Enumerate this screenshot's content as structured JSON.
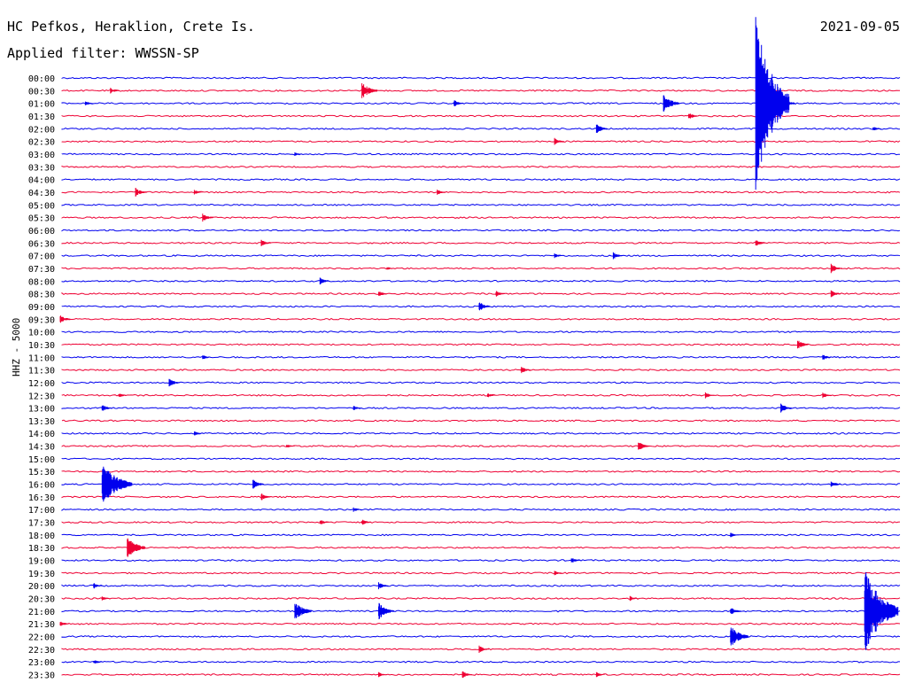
{
  "header": {
    "station": "HC Pefkos, Heraklion, Crete Is.",
    "filter": "Applied filter: WWSSN-SP",
    "date": "2021-09-05"
  },
  "channel_label": "HHZ - 5000",
  "colors": {
    "odd_trace": "#0000ee",
    "even_trace": "#ee0033",
    "background": "#ffffff"
  },
  "chart_data": {
    "type": "line",
    "title": "",
    "xlabel": "",
    "ylabel": "HHZ - 5000",
    "rows": [
      "00:00",
      "00:30",
      "01:00",
      "01:30",
      "02:00",
      "02:30",
      "03:00",
      "03:30",
      "04:00",
      "04:30",
      "05:00",
      "05:30",
      "06:00",
      "06:30",
      "07:00",
      "07:30",
      "08:00",
      "08:30",
      "09:00",
      "09:30",
      "10:00",
      "10:30",
      "11:00",
      "11:30",
      "12:00",
      "12:30",
      "13:00",
      "13:30",
      "14:00",
      "14:30",
      "15:00",
      "15:30",
      "16:00",
      "16:30",
      "17:00",
      "17:30",
      "18:00",
      "18:30",
      "19:00",
      "19:30",
      "20:00",
      "20:30",
      "21:00",
      "21:30",
      "22:00",
      "22:30",
      "23:00",
      "23:30"
    ],
    "trace_colors": [
      "blue",
      "red"
    ],
    "events": [
      {
        "row": 1,
        "x": 0.06,
        "amp": 0.5
      },
      {
        "row": 1,
        "x": 0.36,
        "amp": 1.4
      },
      {
        "row": 2,
        "x": 0.03,
        "amp": 0.4
      },
      {
        "row": 2,
        "x": 0.47,
        "amp": 0.6
      },
      {
        "row": 2,
        "x": 0.72,
        "amp": 1.5
      },
      {
        "row": 2,
        "x": 0.83,
        "amp": 14
      },
      {
        "row": 2,
        "x": 0.86,
        "amp": 1.2
      },
      {
        "row": 3,
        "x": 0.75,
        "amp": 0.6
      },
      {
        "row": 4,
        "x": 0.64,
        "amp": 0.8
      },
      {
        "row": 4,
        "x": 0.97,
        "amp": 0.4
      },
      {
        "row": 5,
        "x": 0.59,
        "amp": 0.6
      },
      {
        "row": 6,
        "x": 0.28,
        "amp": 0.3
      },
      {
        "row": 9,
        "x": 0.09,
        "amp": 0.8
      },
      {
        "row": 9,
        "x": 0.16,
        "amp": 0.4
      },
      {
        "row": 9,
        "x": 0.45,
        "amp": 0.5
      },
      {
        "row": 11,
        "x": 0.17,
        "amp": 0.7
      },
      {
        "row": 13,
        "x": 0.24,
        "amp": 0.6
      },
      {
        "row": 13,
        "x": 0.83,
        "amp": 0.6
      },
      {
        "row": 14,
        "x": 0.59,
        "amp": 0.4
      },
      {
        "row": 14,
        "x": 0.66,
        "amp": 0.6
      },
      {
        "row": 15,
        "x": 0.39,
        "amp": 0.3
      },
      {
        "row": 15,
        "x": 0.92,
        "amp": 0.8
      },
      {
        "row": 16,
        "x": 0.31,
        "amp": 0.6
      },
      {
        "row": 17,
        "x": 0.38,
        "amp": 0.5
      },
      {
        "row": 17,
        "x": 0.52,
        "amp": 0.5
      },
      {
        "row": 17,
        "x": 0.92,
        "amp": 0.6
      },
      {
        "row": 18,
        "x": 0.5,
        "amp": 0.8
      },
      {
        "row": 19,
        "x": 0.0,
        "amp": 0.7
      },
      {
        "row": 21,
        "x": 0.88,
        "amp": 0.8
      },
      {
        "row": 22,
        "x": 0.17,
        "amp": 0.4
      },
      {
        "row": 22,
        "x": 0.91,
        "amp": 0.5
      },
      {
        "row": 23,
        "x": 0.55,
        "amp": 0.6
      },
      {
        "row": 24,
        "x": 0.13,
        "amp": 0.7
      },
      {
        "row": 25,
        "x": 0.07,
        "amp": 0.4
      },
      {
        "row": 25,
        "x": 0.51,
        "amp": 0.4
      },
      {
        "row": 25,
        "x": 0.77,
        "amp": 0.5
      },
      {
        "row": 25,
        "x": 0.91,
        "amp": 0.5
      },
      {
        "row": 26,
        "x": 0.05,
        "amp": 0.6
      },
      {
        "row": 26,
        "x": 0.35,
        "amp": 0.4
      },
      {
        "row": 26,
        "x": 0.86,
        "amp": 0.8
      },
      {
        "row": 28,
        "x": 0.16,
        "amp": 0.4
      },
      {
        "row": 29,
        "x": 0.27,
        "amp": 0.4
      },
      {
        "row": 29,
        "x": 0.69,
        "amp": 0.8
      },
      {
        "row": 32,
        "x": 0.05,
        "amp": 3.5
      },
      {
        "row": 32,
        "x": 0.23,
        "amp": 0.8
      },
      {
        "row": 32,
        "x": 0.92,
        "amp": 0.6
      },
      {
        "row": 33,
        "x": 0.24,
        "amp": 0.6
      },
      {
        "row": 34,
        "x": 0.35,
        "amp": 0.4
      },
      {
        "row": 35,
        "x": 0.31,
        "amp": 0.5
      },
      {
        "row": 35,
        "x": 0.36,
        "amp": 0.5
      },
      {
        "row": 36,
        "x": 0.8,
        "amp": 0.4
      },
      {
        "row": 37,
        "x": 0.08,
        "amp": 1.8
      },
      {
        "row": 38,
        "x": 0.61,
        "amp": 0.5
      },
      {
        "row": 39,
        "x": 0.59,
        "amp": 0.4
      },
      {
        "row": 40,
        "x": 0.04,
        "amp": 0.5
      },
      {
        "row": 40,
        "x": 0.38,
        "amp": 0.6
      },
      {
        "row": 41,
        "x": 0.05,
        "amp": 0.4
      },
      {
        "row": 41,
        "x": 0.68,
        "amp": 0.4
      },
      {
        "row": 42,
        "x": 0.28,
        "amp": 1.6
      },
      {
        "row": 42,
        "x": 0.38,
        "amp": 1.4
      },
      {
        "row": 42,
        "x": 0.8,
        "amp": 0.7
      },
      {
        "row": 42,
        "x": 0.96,
        "amp": 7
      },
      {
        "row": 43,
        "x": 0.0,
        "amp": 0.5
      },
      {
        "row": 44,
        "x": 0.8,
        "amp": 1.8
      },
      {
        "row": 45,
        "x": 0.5,
        "amp": 0.6
      },
      {
        "row": 46,
        "x": 0.04,
        "amp": 0.4
      },
      {
        "row": 47,
        "x": 0.38,
        "amp": 0.4
      },
      {
        "row": 47,
        "x": 0.48,
        "amp": 0.6
      },
      {
        "row": 47,
        "x": 0.64,
        "amp": 0.4
      }
    ]
  }
}
